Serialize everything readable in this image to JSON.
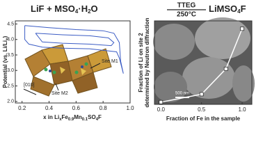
{
  "header": {
    "reactants": [
      "LiF + MSO",
      "4",
      "·H",
      "2",
      "O"
    ],
    "condition_top": "TTEG",
    "condition_bottom": "250°C",
    "product": [
      "LiMSO",
      "4",
      "F"
    ]
  },
  "chart_data": [
    {
      "type": "line",
      "xlabel": [
        "x in Li",
        "x",
        "Fe",
        "0.9",
        "Mn",
        "0.1",
        "SO",
        "4",
        "F"
      ],
      "ylabel": [
        "Potential (vs. Li/Li",
        "+",
        ")"
      ],
      "annotations": [
        "Site M1",
        "Site M2",
        "[010]"
      ],
      "xlim": [
        0.15,
        1.0
      ],
      "ylim": [
        1.95,
        4.6
      ],
      "xticks": [
        0.2,
        0.4,
        0.6,
        0.8,
        {
          "value": 1.0,
          "label": "1.0"
        }
      ],
      "yticks": [
        {
          "value": 2.0,
          "label": "2.0"
        },
        2.5,
        {
          "value": 3.0,
          "label": "3.0"
        },
        3.5,
        {
          "value": 4.0,
          "label": "4.0"
        },
        4.5
      ],
      "series": [
        {
          "color": "#3b5cc4",
          "x": [
            0.22,
            0.4,
            0.6,
            0.8,
            0.88,
            0.92,
            0.93,
            0.95,
            0.92,
            0.9,
            0.7,
            0.5,
            0.35,
            0.25,
            0.22,
            0.22,
            null,
            0.3,
            0.5,
            0.7,
            0.84,
            0.88,
            0.86,
            0.7,
            0.5,
            0.35,
            0.3
          ],
          "y": [
            4.45,
            4.38,
            4.32,
            4.28,
            4.2,
            3.9,
            3.3,
            2.9,
            3.4,
            3.6,
            3.7,
            3.72,
            3.75,
            3.85,
            4.0,
            4.45,
            null,
            4.2,
            4.15,
            4.12,
            4.05,
            3.9,
            3.8,
            3.85,
            3.88,
            3.92,
            4.2
          ]
        }
      ]
    },
    {
      "type": "scatter-line",
      "xlabel": "Fraction of Fe in the sample",
      "ylabel": [
        "Fraction of Li on site 2",
        "determined by Neutron diffraction"
      ],
      "annotations": [
        "500 nm"
      ],
      "xlim": [
        -0.08,
        1.12
      ],
      "ylim": [
        0.516,
        0.664
      ],
      "xticks": [
        {
          "value": 0.0,
          "label": "0.0"
        },
        0.5,
        {
          "value": 1.0,
          "label": "1.0"
        }
      ],
      "series": [
        {
          "color": "#ffffff",
          "x": [
            0,
            0.5,
            0.8,
            1.0
          ],
          "y": [
            0.52,
            0.534,
            0.579,
            0.65
          ]
        }
      ]
    }
  ]
}
